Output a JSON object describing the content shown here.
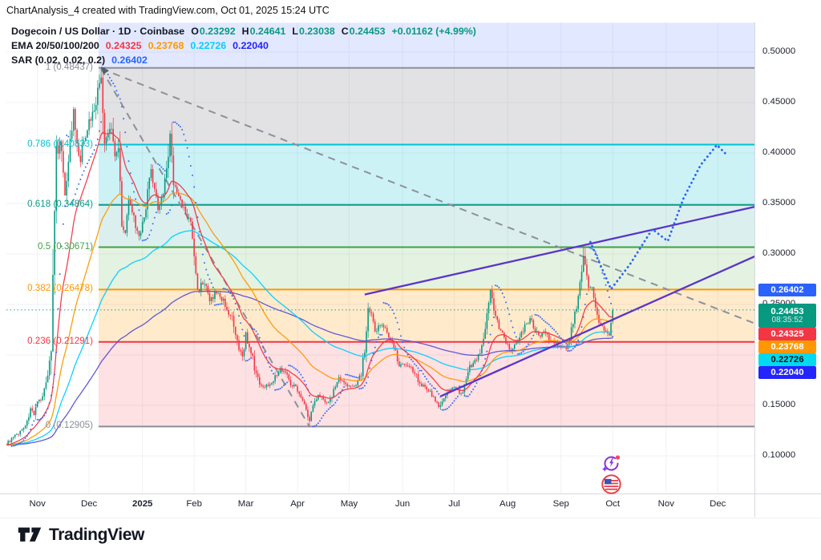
{
  "header": {
    "title": "ChartAnalysis_4 created with TradingView.com, Oct 01, 2025 15:24 UTC"
  },
  "legend": {
    "rows": [
      {
        "name": "symbol-row",
        "parts": [
          {
            "t": "Dogecoin / US Dollar · 1D · Coinbase",
            "c": "#131722"
          },
          {
            "t": "O",
            "c": "#131722",
            "glue": 1
          },
          {
            "t": "0.23292",
            "c": "#089981"
          },
          {
            "t": "H",
            "c": "#131722",
            "glue": 1
          },
          {
            "t": "0.24641",
            "c": "#089981"
          },
          {
            "t": "L",
            "c": "#131722",
            "glue": 1
          },
          {
            "t": "0.23038",
            "c": "#089981"
          },
          {
            "t": "C",
            "c": "#131722",
            "glue": 1
          },
          {
            "t": "0.24453",
            "c": "#089981"
          },
          {
            "t": "+0.01162 (+4.99%)",
            "c": "#089981"
          }
        ]
      },
      {
        "name": "ema-row",
        "parts": [
          {
            "t": "EMA 20/50/100/200",
            "c": "#131722"
          },
          {
            "t": "0.24325",
            "c": "#f23645"
          },
          {
            "t": "0.23768",
            "c": "#ff9800"
          },
          {
            "t": "0.22726",
            "c": "#00cfff"
          },
          {
            "t": "0.22040",
            "c": "#2424ff"
          }
        ]
      },
      {
        "name": "sar-row",
        "parts": [
          {
            "t": "SAR (0.02, 0.02, 0.2)",
            "c": "#131722"
          },
          {
            "t": "0.26402",
            "c": "#2962ff"
          }
        ]
      }
    ]
  },
  "y_axis": {
    "ticks": [
      {
        "label": "0.50000",
        "price": 0.5
      },
      {
        "label": "0.45000",
        "price": 0.45
      },
      {
        "label": "0.40000",
        "price": 0.4
      },
      {
        "label": "0.35000",
        "price": 0.35
      },
      {
        "label": "0.30000",
        "price": 0.3
      },
      {
        "label": "0.25000",
        "price": 0.25
      },
      {
        "label": "0.20000",
        "price": 0.2
      },
      {
        "label": "0.15000",
        "price": 0.15
      },
      {
        "label": "0.10000",
        "price": 0.1
      }
    ],
    "badges": [
      {
        "text": "0.26402",
        "price": 0.26402,
        "bg": "#2962ff",
        "fg": "#ffffff"
      },
      {
        "text": "0.24453",
        "price": 0.24453,
        "bg": "#089981",
        "fg": "#ffffff",
        "countdown": "08:35:52",
        "tall": true
      },
      {
        "text": "0.24325",
        "price": 0.24325,
        "bg": "#f23645",
        "fg": "#ffffff"
      },
      {
        "text": "0.23768",
        "price": 0.23768,
        "bg": "#ff9800",
        "fg": "#ffffff"
      },
      {
        "text": "0.22726",
        "price": 0.22726,
        "bg": "#00d9ef",
        "fg": "#111111"
      },
      {
        "text": "0.22040",
        "price": 0.2204,
        "bg": "#2424ff",
        "fg": "#ffffff"
      }
    ]
  },
  "x_axis": {
    "months": [
      {
        "label": "Nov",
        "day": 18
      },
      {
        "label": "Dec",
        "day": 48
      },
      {
        "label": "2025",
        "day": 79,
        "bold": true
      },
      {
        "label": "Feb",
        "day": 109
      },
      {
        "label": "Mar",
        "day": 139
      },
      {
        "label": "Apr",
        "day": 169
      },
      {
        "label": "May",
        "day": 199
      },
      {
        "label": "Jun",
        "day": 230
      },
      {
        "label": "Jul",
        "day": 260
      },
      {
        "label": "Aug",
        "day": 291
      },
      {
        "label": "Sep",
        "day": 322
      },
      {
        "label": "Oct",
        "day": 352
      },
      {
        "label": "Nov",
        "day": 383
      },
      {
        "label": "Dec",
        "day": 413
      }
    ]
  },
  "chart_data": {
    "type": "candlestick",
    "symbol": "Dogecoin / US Dollar",
    "interval": "1D",
    "exchange": "Coinbase",
    "current": {
      "open": 0.23292,
      "high": 0.24641,
      "low": 0.23038,
      "close": 0.24453,
      "change": "+0.01162",
      "change_pct": "+4.99%"
    },
    "ylim": [
      0.064,
      0.529
    ],
    "grid_prices": [
      0.5,
      0.45,
      0.4,
      0.35,
      0.3,
      0.25,
      0.2,
      0.15,
      0.1
    ],
    "colors": {
      "up": "#089981",
      "down": "#f23645",
      "grid": "#eff1f5",
      "dashed": "#8d909a",
      "wedge": "#5b35c8",
      "projection": "#2b63f6",
      "sar_dots": "#2f66f5",
      "close_line": "#089981",
      "axis_sep": "#d6d9e0",
      "lavender": "rgba(112,140,255,0.20)"
    },
    "fib_retracement": {
      "start_day": 53.5,
      "levels": [
        {
          "display": "1 (0.48437)",
          "ratio": 1,
          "price": 0.48437,
          "color": "#8c8f99"
        },
        {
          "display": "0.786 (0.40833)",
          "ratio": 0.786,
          "price": 0.40833,
          "color": "#00c2d4"
        },
        {
          "display": "0.618 (0.34864)",
          "ratio": 0.618,
          "price": 0.34864,
          "color": "#0a9b8a"
        },
        {
          "display": "0.5 (0.30671)",
          "ratio": 0.5,
          "price": 0.30671,
          "color": "#43a047"
        },
        {
          "display": "0.382 (0.26478)",
          "ratio": 0.382,
          "price": 0.26478,
          "color": "#ff9800"
        },
        {
          "display": "0.236 (0.21291)",
          "ratio": 0.236,
          "price": 0.21291,
          "color": "#f23645"
        },
        {
          "display": "0 (0.12905)",
          "ratio": 0,
          "price": 0.12905,
          "color": "#8c8f99"
        }
      ],
      "bands": [
        {
          "from": 0.529,
          "to": 0.48437,
          "fill": "rgba(112,140,255,0.20)"
        },
        {
          "from": 0.48437,
          "to": 0.40833,
          "fill": "rgba(122,124,134,0.22)"
        },
        {
          "from": 0.40833,
          "to": 0.34864,
          "fill": "rgba(0,188,212,0.20)"
        },
        {
          "from": 0.34864,
          "to": 0.30671,
          "fill": "rgba(0,150,136,0.14)"
        },
        {
          "from": 0.30671,
          "to": 0.26478,
          "fill": "rgba(96,175,80,0.17)"
        },
        {
          "from": 0.26478,
          "to": 0.21291,
          "fill": "rgba(255,152,0,0.20)"
        },
        {
          "from": 0.21291,
          "to": 0.12905,
          "fill": "rgba(242,54,69,0.15)"
        }
      ]
    },
    "emas": [
      {
        "period": 20,
        "color": "#f23645",
        "value": 0.24325
      },
      {
        "period": 50,
        "color": "#ff9800",
        "value": 0.23768
      },
      {
        "period": 100,
        "color": "#00cfff",
        "value": 0.22726
      },
      {
        "period": 200,
        "color": "#5a50d6",
        "value": 0.2204
      }
    ],
    "sar": {
      "params": "0.02, 0.02, 0.2",
      "value": 0.26402
    },
    "close_line_price": 0.24453,
    "trendlines_dashed": [
      {
        "d1": 55,
        "p1": 0.4835,
        "d2": 440,
        "p2": 0.2275
      },
      {
        "d1": 55,
        "p1": 0.4835,
        "d2": 176,
        "p2": 0.1288
      }
    ],
    "wedge_lines": [
      {
        "d1": 208,
        "p1": 0.2598,
        "d2": 440,
        "p2": 0.3489
      },
      {
        "d1": 252,
        "p1": 0.159,
        "d2": 440,
        "p2": 0.3018
      }
    ],
    "projection_dotted": [
      [
        339,
        0.3119
      ],
      [
        351,
        0.2651
      ],
      [
        362,
        0.2897
      ],
      [
        375,
        0.3246
      ],
      [
        384,
        0.3127
      ],
      [
        393,
        0.3548
      ],
      [
        403,
        0.3881
      ],
      [
        412.5,
        0.4079
      ],
      [
        418.5,
        0.3976
      ]
    ],
    "price_path_anchors": [
      [
        0,
        0.112
      ],
      [
        4,
        0.118
      ],
      [
        8,
        0.124
      ],
      [
        12,
        0.133
      ],
      [
        14,
        0.148
      ],
      [
        16,
        0.139
      ],
      [
        18,
        0.152
      ],
      [
        21,
        0.16
      ],
      [
        23,
        0.172
      ],
      [
        26,
        0.205
      ],
      [
        28,
        0.33
      ],
      [
        29,
        0.395
      ],
      [
        31,
        0.415
      ],
      [
        33,
        0.38
      ],
      [
        34,
        0.36
      ],
      [
        36,
        0.395
      ],
      [
        39,
        0.44
      ],
      [
        41,
        0.405
      ],
      [
        43,
        0.39
      ],
      [
        45,
        0.415
      ],
      [
        48,
        0.43
      ],
      [
        51,
        0.445
      ],
      [
        53,
        0.46
      ],
      [
        55,
        0.478
      ],
      [
        56,
        0.44
      ],
      [
        57,
        0.405
      ],
      [
        59,
        0.42
      ],
      [
        61,
        0.425
      ],
      [
        63,
        0.4
      ],
      [
        65,
        0.405
      ],
      [
        67,
        0.335
      ],
      [
        69,
        0.32
      ],
      [
        71,
        0.35
      ],
      [
        73,
        0.345
      ],
      [
        75,
        0.322
      ],
      [
        77,
        0.318
      ],
      [
        79,
        0.328
      ],
      [
        82,
        0.36
      ],
      [
        84,
        0.382
      ],
      [
        86,
        0.36
      ],
      [
        88,
        0.346
      ],
      [
        91,
        0.36
      ],
      [
        93,
        0.385
      ],
      [
        95,
        0.418
      ],
      [
        96,
        0.405
      ],
      [
        97,
        0.368
      ],
      [
        99,
        0.36
      ],
      [
        101,
        0.352
      ],
      [
        104,
        0.34
      ],
      [
        107,
        0.33
      ],
      [
        109,
        0.3
      ],
      [
        111,
        0.262
      ],
      [
        113,
        0.27
      ],
      [
        115,
        0.272
      ],
      [
        118,
        0.252
      ],
      [
        120,
        0.258
      ],
      [
        122,
        0.262
      ],
      [
        125,
        0.256
      ],
      [
        127,
        0.25
      ],
      [
        129,
        0.242
      ],
      [
        131,
        0.235
      ],
      [
        133,
        0.218
      ],
      [
        135,
        0.205
      ],
      [
        137,
        0.198
      ],
      [
        139,
        0.222
      ],
      [
        141,
        0.205
      ],
      [
        143,
        0.196
      ],
      [
        145,
        0.18
      ],
      [
        147,
        0.172
      ],
      [
        150,
        0.168
      ],
      [
        153,
        0.172
      ],
      [
        156,
        0.178
      ],
      [
        159,
        0.186
      ],
      [
        162,
        0.183
      ],
      [
        165,
        0.172
      ],
      [
        168,
        0.168
      ],
      [
        171,
        0.16
      ],
      [
        173,
        0.15
      ],
      [
        176,
        0.134
      ],
      [
        178,
        0.15
      ],
      [
        181,
        0.162
      ],
      [
        184,
        0.156
      ],
      [
        187,
        0.152
      ],
      [
        190,
        0.165
      ],
      [
        193,
        0.178
      ],
      [
        196,
        0.172
      ],
      [
        199,
        0.168
      ],
      [
        203,
        0.172
      ],
      [
        206,
        0.182
      ],
      [
        208,
        0.205
      ],
      [
        210,
        0.243
      ],
      [
        212,
        0.238
      ],
      [
        214,
        0.222
      ],
      [
        216,
        0.228
      ],
      [
        218,
        0.232
      ],
      [
        220,
        0.225
      ],
      [
        222,
        0.218
      ],
      [
        225,
        0.21
      ],
      [
        228,
        0.19
      ],
      [
        231,
        0.192
      ],
      [
        234,
        0.188
      ],
      [
        237,
        0.183
      ],
      [
        240,
        0.172
      ],
      [
        243,
        0.168
      ],
      [
        246,
        0.163
      ],
      [
        249,
        0.155
      ],
      [
        251,
        0.148
      ],
      [
        253,
        0.155
      ],
      [
        256,
        0.162
      ],
      [
        258,
        0.166
      ],
      [
        260,
        0.168
      ],
      [
        263,
        0.162
      ],
      [
        265,
        0.163
      ],
      [
        267,
        0.175
      ],
      [
        269,
        0.188
      ],
      [
        271,
        0.192
      ],
      [
        274,
        0.198
      ],
      [
        276,
        0.21
      ],
      [
        278,
        0.228
      ],
      [
        280,
        0.248
      ],
      [
        281,
        0.262
      ],
      [
        283,
        0.245
      ],
      [
        285,
        0.232
      ],
      [
        287,
        0.225
      ],
      [
        289,
        0.215
      ],
      [
        292,
        0.205
      ],
      [
        294,
        0.208
      ],
      [
        296,
        0.212
      ],
      [
        299,
        0.222
      ],
      [
        301,
        0.228
      ],
      [
        304,
        0.235
      ],
      [
        306,
        0.228
      ],
      [
        309,
        0.218
      ],
      [
        312,
        0.222
      ],
      [
        314,
        0.219
      ],
      [
        316,
        0.214
      ],
      [
        318,
        0.213
      ],
      [
        320,
        0.21
      ],
      [
        322,
        0.209
      ],
      [
        325,
        0.207
      ],
      [
        327,
        0.216
      ],
      [
        330,
        0.24
      ],
      [
        332,
        0.26
      ],
      [
        334,
        0.285
      ],
      [
        335,
        0.3
      ],
      [
        336,
        0.285
      ],
      [
        338,
        0.268
      ],
      [
        340,
        0.266
      ],
      [
        342,
        0.25
      ],
      [
        344,
        0.235
      ],
      [
        346,
        0.228
      ],
      [
        348,
        0.222
      ],
      [
        350,
        0.221
      ],
      [
        351,
        0.232
      ],
      [
        352,
        0.24453
      ]
    ],
    "candle_overrides": [
      {
        "day": 55,
        "high": 0.48437
      },
      {
        "day": 176,
        "low": 0.12905
      },
      {
        "day": 335,
        "high": 0.30671
      },
      {
        "day": 352,
        "open": 0.23292,
        "high": 0.24641,
        "low": 0.23038,
        "close": 0.24453
      }
    ]
  },
  "icons": [
    {
      "name": "ai-sparkle-refresh-icon"
    },
    {
      "name": "us-flag-icon"
    }
  ],
  "footer": {
    "logo_text": "TradingView"
  }
}
